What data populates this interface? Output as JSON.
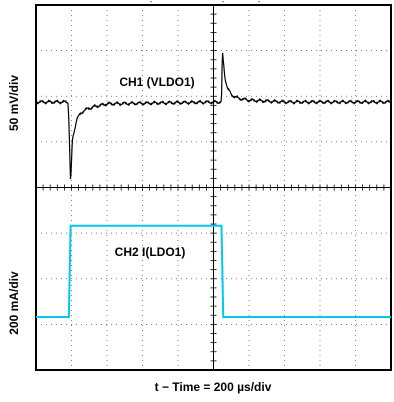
{
  "chart_data": [
    {
      "type": "line",
      "channel_label": "CH1 (VLDO1)",
      "ylabel": "50 mV/div",
      "scale": {
        "per_div": 50,
        "unit": "mV"
      },
      "xlabel": "t − Time = 200 µs/div",
      "time_per_div_us": 200,
      "x_divisions": 10,
      "y_divisions_per_channel": 4,
      "grid": true,
      "series": [
        {
          "color": "#000000",
          "x_us": [
            0,
            180,
            185,
            190,
            195,
            205,
            230,
            270,
            330,
            400,
            1030,
            1045,
            1050,
            1055,
            1065,
            1080,
            1100,
            1140,
            1200,
            1300,
            1400,
            2000
          ],
          "y_mV": [
            0,
            0,
            -18,
            -55,
            -90,
            -42,
            -18,
            -9,
            -5,
            -2,
            0,
            0,
            55,
            45,
            26,
            15,
            8,
            4,
            2,
            1,
            0,
            0
          ]
        }
      ]
    },
    {
      "type": "line",
      "channel_label": "CH2 I(LDO1)",
      "ylabel": "200 mA/div",
      "scale": {
        "per_div": 200,
        "unit": "mA"
      },
      "xlabel": "t − Time = 200 µs/div",
      "time_per_div_us": 200,
      "grid": true,
      "series": [
        {
          "color": "#00c8f0",
          "x_us": [
            0,
            185,
            195,
            1045,
            1055,
            2000
          ],
          "y_mA": [
            0,
            0,
            400,
            400,
            0,
            0
          ]
        }
      ]
    }
  ],
  "ticks": {
    "top_labels": [
      "-",
      "-",
      "-"
    ]
  }
}
